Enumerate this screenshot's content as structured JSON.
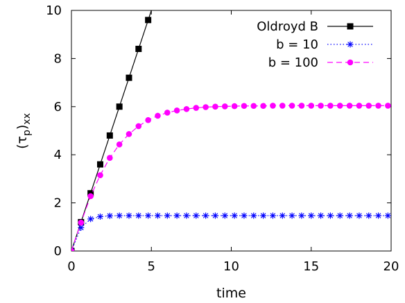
{
  "chart_data": {
    "type": "line",
    "xlabel": "time",
    "ylabel": "(τp)xx",
    "ylabel_parts": {
      "base": "(τ",
      "sub1": "p",
      "close": ")",
      "sub2": "xx"
    },
    "xlim": [
      0,
      20
    ],
    "ylim": [
      0,
      10
    ],
    "x_ticks": [
      0,
      5,
      10,
      15,
      20
    ],
    "y_ticks": [
      0,
      2,
      4,
      6,
      8,
      10
    ],
    "grid": false,
    "legend_position": "top-right",
    "series": [
      {
        "name": "Oldroyd B",
        "color": "#000000",
        "line": "solid",
        "marker": "filled-square",
        "x": [
          0,
          0.6,
          1.2,
          1.8,
          2.4,
          3.0,
          3.6,
          4.2,
          4.8
        ],
        "y": [
          0,
          1.2,
          2.4,
          3.6,
          4.8,
          6.0,
          7.2,
          8.4,
          9.6
        ],
        "line_extends_to": [
          5.0,
          10.0
        ]
      },
      {
        "name": "b = 10",
        "color": "#0000ff",
        "line": "dotted",
        "marker": "asterisk",
        "x": [
          0,
          0.6,
          1.2,
          1.8,
          2.4,
          3.0,
          3.6,
          4.2,
          4.8,
          5.4,
          6.0,
          6.6,
          7.2,
          7.8,
          8.4,
          9.0,
          9.6,
          10.2,
          10.8,
          11.4,
          12.0,
          12.6,
          13.2,
          13.8,
          14.4,
          15.0,
          15.6,
          16.2,
          16.8,
          17.4,
          18.0,
          18.6,
          19.2,
          19.8
        ],
        "y": [
          0,
          0.97,
          1.33,
          1.43,
          1.46,
          1.47,
          1.47,
          1.47,
          1.47,
          1.47,
          1.47,
          1.47,
          1.47,
          1.47,
          1.47,
          1.47,
          1.47,
          1.47,
          1.47,
          1.47,
          1.47,
          1.47,
          1.47,
          1.47,
          1.47,
          1.47,
          1.47,
          1.47,
          1.47,
          1.47,
          1.47,
          1.47,
          1.47,
          1.47
        ]
      },
      {
        "name": "b = 100",
        "color": "#ff00ff",
        "line": "dashed",
        "marker": "filled-circle",
        "x": [
          0,
          0.6,
          1.2,
          1.8,
          2.4,
          3.0,
          3.6,
          4.2,
          4.8,
          5.4,
          6.0,
          6.6,
          7.2,
          7.8,
          8.4,
          9.0,
          9.6,
          10.2,
          10.8,
          11.4,
          12.0,
          12.6,
          13.2,
          13.8,
          14.4,
          15.0,
          15.6,
          16.2,
          16.8,
          17.4,
          18.0,
          18.6,
          19.2,
          19.8
        ],
        "y": [
          0,
          1.18,
          2.28,
          3.15,
          3.87,
          4.43,
          4.86,
          5.19,
          5.44,
          5.62,
          5.75,
          5.84,
          5.9,
          5.95,
          5.98,
          6.0,
          6.01,
          6.02,
          6.03,
          6.03,
          6.03,
          6.04,
          6.04,
          6.04,
          6.04,
          6.04,
          6.04,
          6.04,
          6.04,
          6.04,
          6.04,
          6.04,
          6.04,
          6.04
        ]
      }
    ]
  }
}
